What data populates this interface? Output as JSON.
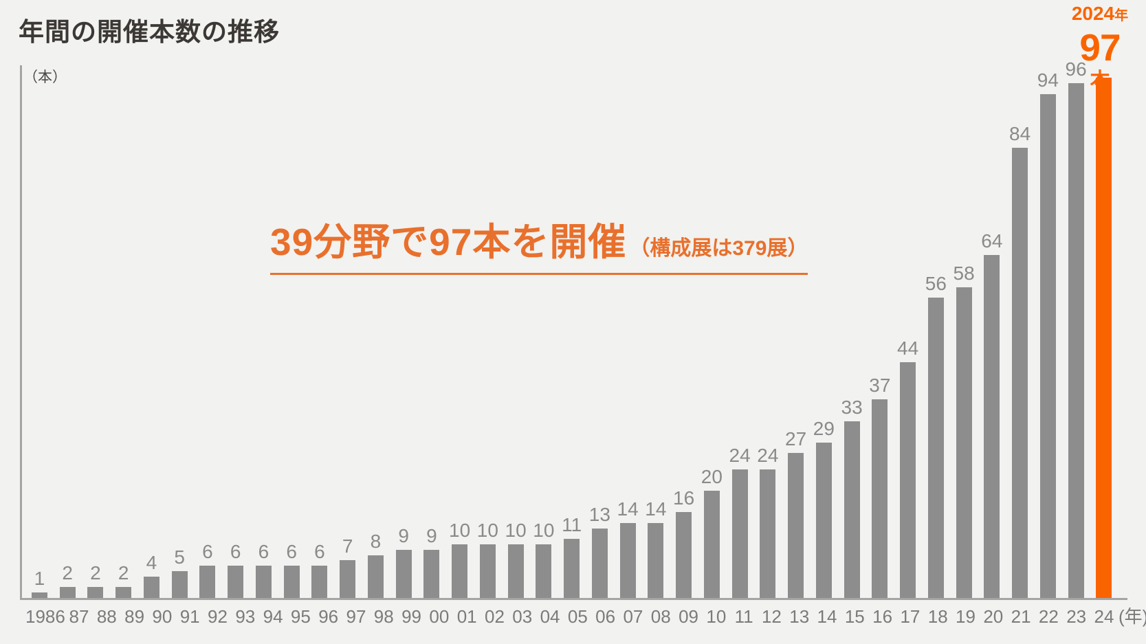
{
  "page": {
    "background_color": "#f2f2f0"
  },
  "header": {
    "title": "年間の開催本数の推移"
  },
  "callout": {
    "year_number": "2024",
    "year_suffix": "年",
    "count": "97",
    "unit": "本",
    "color": "#fa6400"
  },
  "headline": {
    "main": "39分野で97本を開催",
    "note": "（構成展は379展）",
    "color": "#e8702c"
  },
  "chart_data": {
    "type": "bar",
    "title": "年間の開催本数の推移",
    "unit_label": "（本）",
    "xlabel": "年",
    "ylabel": "本",
    "xaxis_suffix": "(年)",
    "categories": [
      "1986",
      "87",
      "88",
      "89",
      "90",
      "91",
      "92",
      "93",
      "94",
      "95",
      "96",
      "97",
      "98",
      "99",
      "00",
      "01",
      "02",
      "03",
      "04",
      "05",
      "06",
      "07",
      "08",
      "09",
      "10",
      "11",
      "12",
      "13",
      "14",
      "15",
      "16",
      "17",
      "18",
      "19",
      "20",
      "21",
      "22",
      "23",
      "24"
    ],
    "values": [
      1,
      2,
      2,
      2,
      4,
      5,
      6,
      6,
      6,
      6,
      6,
      7,
      8,
      9,
      9,
      10,
      10,
      10,
      10,
      11,
      13,
      14,
      14,
      16,
      20,
      24,
      24,
      27,
      29,
      33,
      37,
      44,
      56,
      58,
      64,
      84,
      94,
      96,
      97
    ],
    "ylim": [
      0,
      97
    ],
    "grid": false,
    "value_labels": true,
    "legend": "none",
    "bar_color": "#8d8d8d",
    "highlight_index": 38,
    "highlight_color": "#fa6400",
    "highlight_label": "2024年 97本"
  }
}
